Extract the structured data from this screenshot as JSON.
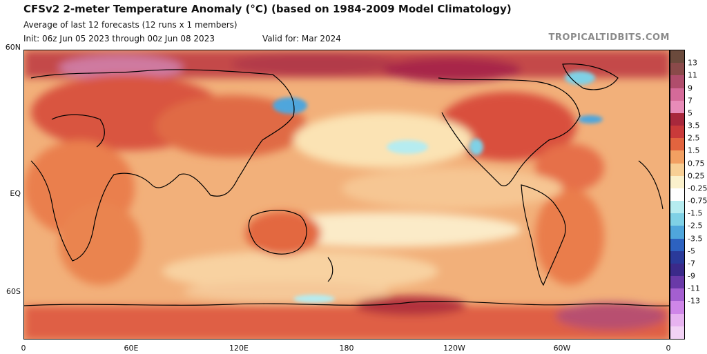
{
  "header": {
    "title": "CFSv2 2-meter Temperature Anomaly (°C) (based on 1984-2009 Model Climatology)",
    "subtitle": "Average of last 12 forecasts (12 runs x 1 members)",
    "init": "Init: 06z Jun 05 2023 through 00z Jun 08 2023",
    "valid": "Valid for: Mar 2024",
    "credit": "TROPICALTIDBITS.COM"
  },
  "axes": {
    "lat_labels": [
      "60N",
      "EQ",
      "60S"
    ],
    "lon_labels": [
      "0",
      "60E",
      "120E",
      "180",
      "120W",
      "60W",
      "0"
    ]
  },
  "colorbar": {
    "labels": [
      "13",
      "11",
      "9",
      "7",
      "5",
      "3.5",
      "2.5",
      "1.5",
      "0.75",
      "0.25",
      "-0.25",
      "-0.75",
      "-1.5",
      "-2.5",
      "-3.5",
      "-5",
      "-7",
      "-9",
      "-11",
      "-13"
    ],
    "colors": [
      "#6b4a3c",
      "#8a4a4a",
      "#b04d6c",
      "#d56a99",
      "#e88bb8",
      "#a8283c",
      "#c93a3a",
      "#e2643f",
      "#f2a062",
      "#f8cf95",
      "#fbf1cc",
      "#ffffff",
      "#b6ecf0",
      "#7fd1e6",
      "#4fa6dc",
      "#2d62c0",
      "#2a3a9a",
      "#3b2a8a",
      "#6a3aa8",
      "#a45fd0",
      "#cf86e8",
      "#e7b3f0",
      "#f2d2f5"
    ]
  },
  "icons": {
    "map": "world-map",
    "colorbar": "color-scale"
  }
}
